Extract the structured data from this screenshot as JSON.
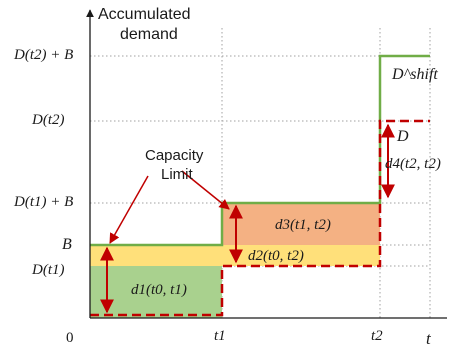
{
  "axes": {
    "y_title_line1": "Accumulated",
    "y_title_line2": "demand",
    "origin": "0",
    "x_var": "t"
  },
  "y_ticks": [
    "D(t2) + B",
    "D(t2)",
    "D(t1) + B",
    "B",
    "D(t1)"
  ],
  "x_ticks": [
    "t1",
    "t2"
  ],
  "annotation": {
    "line1": "Capacity",
    "line2": "Limit"
  },
  "regions": {
    "d1": "d1(t0, t1)",
    "d2": "d2(t0, t2)",
    "d3": "d3(t1, t2)",
    "d4": "d4(t2, t2)"
  },
  "curves": {
    "shift": "D^shift",
    "demand": "D"
  },
  "colors": {
    "green_fill": "#a9d18e",
    "yellow_fill": "#ffe07a",
    "orange_fill": "#f4b183",
    "green_line": "#70ad47",
    "red_dash": "#c00000",
    "arrow": "#c00000",
    "grid": "#a0a0a0"
  }
}
